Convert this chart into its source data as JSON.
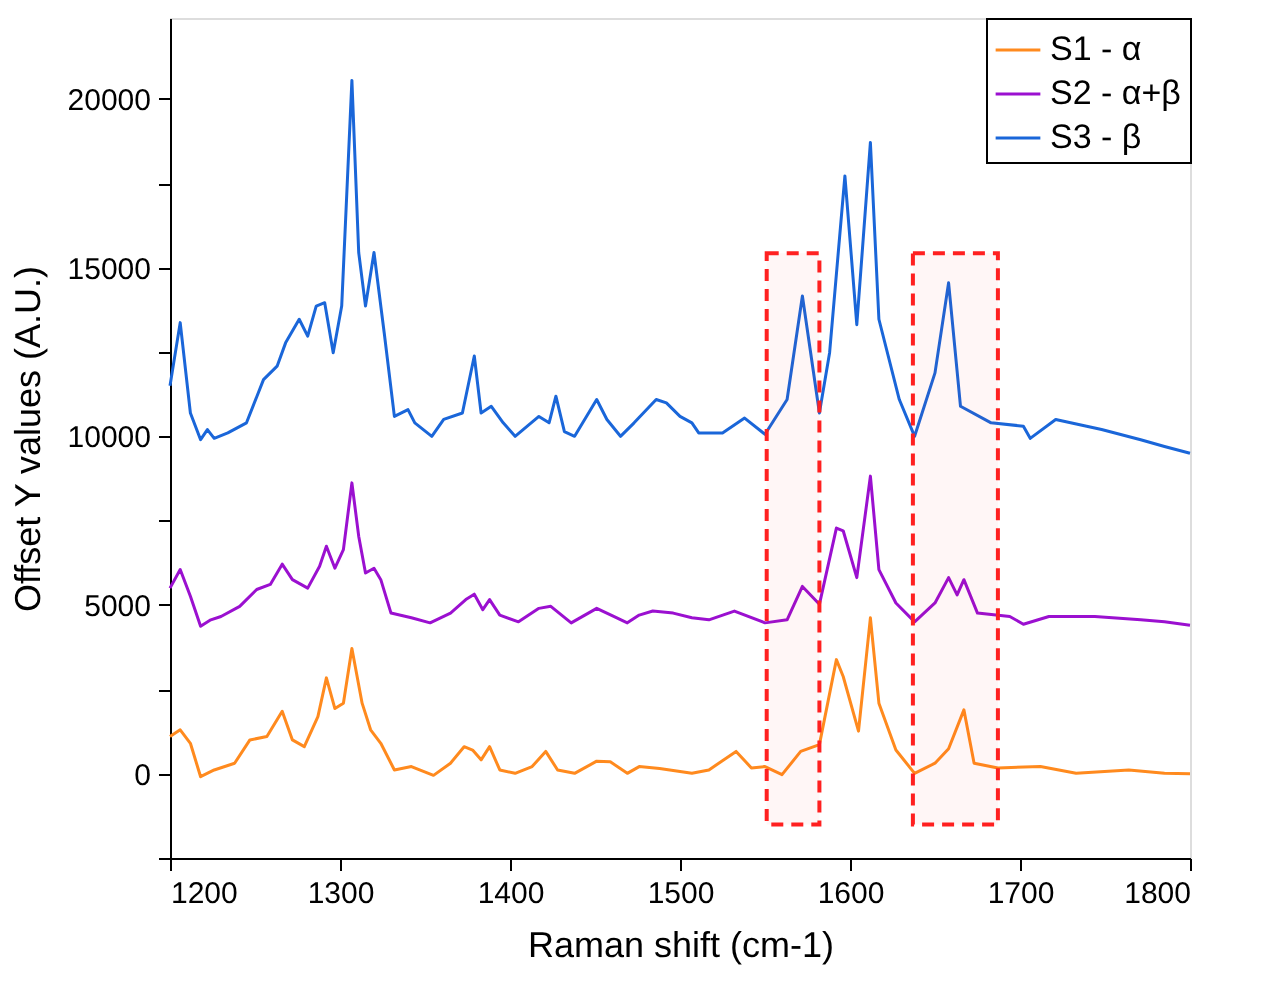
{
  "chart_data": {
    "type": "line",
    "xlabel": "Raman shift (cm-1)",
    "ylabel": "Offset Y values (A.U.)",
    "xlim": [
      1200,
      1800
    ],
    "xticks": [
      1200,
      1300,
      1400,
      1500,
      1600,
      1700,
      1800
    ],
    "ylim": [
      -2500,
      22400
    ],
    "yticks": [
      {
        "value": -2500,
        "label": null
      },
      0,
      {
        "value": 2500,
        "label": null
      },
      5000,
      {
        "value": 7500,
        "label": null
      },
      10000,
      {
        "value": 12500,
        "label": null
      },
      15000,
      {
        "value": 17500,
        "label": null
      },
      20000
    ],
    "grid": false,
    "legend": "top right",
    "marker": "none",
    "line_style": "solid",
    "bands": [
      {
        "axis": "x",
        "from": 1551,
        "to": 1582,
        "color": "#ff2020"
      },
      {
        "axis": "x",
        "from": 1637,
        "to": 1687,
        "color": "#ff2020"
      }
    ],
    "series": [
      {
        "name": "S1 - α",
        "color": "#ff8a1e",
        "x": [
          1200,
          1206,
          1212,
          1218,
          1226,
          1238,
          1247,
          1257,
          1266,
          1272,
          1279,
          1287,
          1292,
          1297,
          1302,
          1307,
          1313,
          1318,
          1324,
          1332,
          1342,
          1355,
          1365,
          1373,
          1378,
          1383,
          1388,
          1394,
          1403,
          1413,
          1421,
          1428,
          1438,
          1451,
          1459,
          1469,
          1476,
          1488,
          1507,
          1517,
          1533,
          1542,
          1550,
          1560,
          1571,
          1582,
          1592,
          1596,
          1605,
          1612,
          1617,
          1627,
          1638,
          1650,
          1658,
          1667,
          1673,
          1687,
          1712,
          1733,
          1764,
          1785,
          1800
        ],
        "values": [
          1100,
          1300,
          900,
          -90,
          110,
          310,
          1000,
          1100,
          1850,
          1000,
          800,
          1690,
          2840,
          1930,
          2090,
          3710,
          2090,
          1300,
          900,
          110,
          210,
          -50,
          310,
          800,
          700,
          410,
          800,
          110,
          10,
          210,
          660,
          110,
          10,
          370,
          350,
          10,
          210,
          150,
          10,
          110,
          660,
          170,
          210,
          -30,
          660,
          860,
          3380,
          2880,
          1260,
          4620,
          2090,
          700,
          10,
          310,
          740,
          1890,
          310,
          170,
          210,
          10,
          110,
          10,
          0
        ]
      },
      {
        "name": "S2 - α+β",
        "color": "#9b10d0",
        "x": [
          1200,
          1206,
          1212,
          1218,
          1224,
          1230,
          1241,
          1251,
          1259,
          1266,
          1272,
          1281,
          1288,
          1292,
          1297,
          1302,
          1307,
          1311,
          1315,
          1320,
          1324,
          1330,
          1342,
          1353,
          1365,
          1374,
          1379,
          1384,
          1388,
          1394,
          1405,
          1417,
          1424,
          1436,
          1451,
          1461,
          1469,
          1476,
          1484,
          1496,
          1507,
          1517,
          1532,
          1550,
          1563,
          1572,
          1582,
          1592,
          1596,
          1604,
          1612,
          1617,
          1627,
          1638,
          1650,
          1658,
          1663,
          1667,
          1675,
          1694,
          1702,
          1717,
          1744,
          1771,
          1785,
          1800
        ],
        "values": [
          5500,
          6050,
          5260,
          4370,
          4560,
          4660,
          4960,
          5460,
          5610,
          6210,
          5750,
          5500,
          6150,
          6740,
          6090,
          6640,
          8620,
          7040,
          5950,
          6090,
          5750,
          4760,
          4620,
          4470,
          4760,
          5160,
          5320,
          4860,
          5160,
          4700,
          4500,
          4900,
          4960,
          4470,
          4900,
          4660,
          4470,
          4700,
          4820,
          4760,
          4620,
          4560,
          4820,
          4470,
          4560,
          5550,
          5020,
          7280,
          7200,
          5810,
          8820,
          6050,
          5060,
          4500,
          5060,
          5810,
          5300,
          5750,
          4760,
          4660,
          4430,
          4660,
          4660,
          4560,
          4500,
          4400
        ]
      },
      {
        "name": "S3 - β",
        "color": "#1a66d9",
        "x": [
          1200,
          1206,
          1212,
          1218,
          1222,
          1226,
          1234,
          1245,
          1255,
          1263,
          1268,
          1276,
          1281,
          1286,
          1291,
          1296,
          1301,
          1307,
          1311,
          1315,
          1320,
          1326,
          1332,
          1340,
          1344,
          1354,
          1361,
          1372,
          1379,
          1383,
          1389,
          1396,
          1403,
          1417,
          1423,
          1427,
          1432,
          1438,
          1451,
          1457,
          1465,
          1473,
          1486,
          1492,
          1500,
          1507,
          1511,
          1525,
          1538,
          1550,
          1563,
          1572,
          1582,
          1588,
          1597,
          1604,
          1612,
          1617,
          1629,
          1638,
          1650,
          1658,
          1665,
          1683,
          1702,
          1706,
          1721,
          1748,
          1771,
          1785,
          1800
        ],
        "values": [
          11500,
          13370,
          10690,
          9900,
          10200,
          9940,
          10100,
          10400,
          11680,
          12080,
          12770,
          13470,
          12970,
          13860,
          13960,
          12480,
          13860,
          20550,
          15450,
          13860,
          15450,
          13070,
          10590,
          10790,
          10400,
          10000,
          10500,
          10690,
          12380,
          10690,
          10890,
          10400,
          10000,
          10590,
          10400,
          11190,
          10140,
          10000,
          11090,
          10500,
          10000,
          10400,
          11090,
          10990,
          10590,
          10400,
          10100,
          10100,
          10540,
          10060,
          11090,
          14160,
          10690,
          12480,
          17720,
          13310,
          18710,
          13470,
          11090,
          10000,
          11880,
          14550,
          10890,
          10400,
          10300,
          9940,
          10500,
          10200,
          9900,
          9700,
          9500
        ]
      }
    ]
  }
}
